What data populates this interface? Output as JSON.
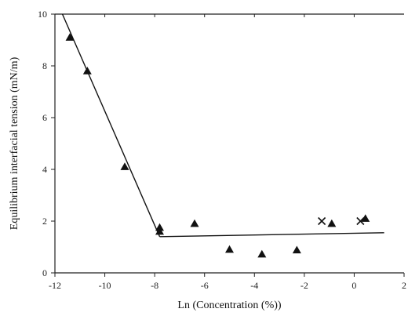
{
  "chart_data": {
    "type": "scatter",
    "title": "",
    "xlabel": "Ln (Concentration (%))",
    "ylabel": "Equilibrium interfacial tension  (mN/m)",
    "xlim": [
      -12,
      2
    ],
    "ylim": [
      0,
      10
    ],
    "x_ticks": [
      -12,
      -10,
      -8,
      -6,
      -4,
      -2,
      0,
      2
    ],
    "y_ticks": [
      0,
      2,
      4,
      6,
      8,
      10
    ],
    "grid": false,
    "legend": "none",
    "series": [
      {
        "marker": "triangle",
        "color": "#111111",
        "points": [
          {
            "x": -11.4,
            "y": 9.1
          },
          {
            "x": -10.7,
            "y": 7.8
          },
          {
            "x": -9.2,
            "y": 4.1
          },
          {
            "x": -7.8,
            "y": 1.75
          },
          {
            "x": -7.8,
            "y": 1.6
          },
          {
            "x": -6.4,
            "y": 1.9
          },
          {
            "x": -5.0,
            "y": 0.9
          },
          {
            "x": -3.7,
            "y": 0.72
          },
          {
            "x": -2.3,
            "y": 0.88
          },
          {
            "x": -0.9,
            "y": 1.9
          },
          {
            "x": 0.45,
            "y": 2.1
          }
        ]
      },
      {
        "marker": "x",
        "color": "#111111",
        "points": [
          {
            "x": -1.3,
            "y": 2.0
          },
          {
            "x": 0.25,
            "y": 2.0
          }
        ]
      }
    ],
    "fit_lines": [
      {
        "points": [
          {
            "x": -11.7,
            "y": 10.0
          },
          {
            "x": -7.8,
            "y": 1.4
          }
        ]
      },
      {
        "points": [
          {
            "x": -7.8,
            "y": 1.4
          },
          {
            "x": 1.2,
            "y": 1.55
          }
        ]
      }
    ]
  }
}
